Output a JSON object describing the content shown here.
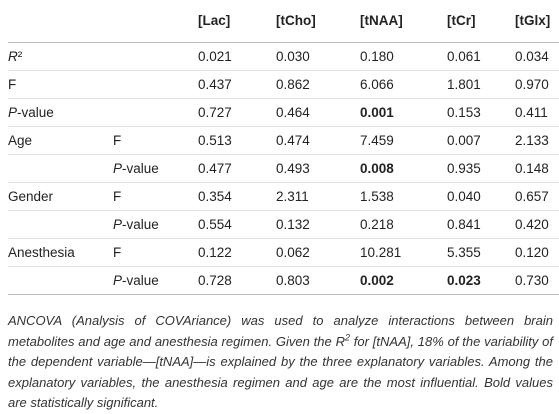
{
  "table": {
    "columns": [
      "[Lac]",
      "[tCho]",
      "[tNAA]",
      "[tCr]",
      "[tGlx]"
    ],
    "rows": [
      {
        "label": "R²",
        "italic_initial": true,
        "values": [
          "0.021",
          "0.030",
          "0.180",
          "0.061",
          "0.034"
        ]
      },
      {
        "label": "F",
        "values": [
          "0.437",
          "0.862",
          "6.066",
          "1.801",
          "0.970"
        ]
      },
      {
        "label": "P-value",
        "italic_initial": true,
        "values": [
          "0.727",
          "0.464",
          "0.001",
          "0.153",
          "0.411"
        ],
        "bold": [
          2
        ]
      },
      {
        "label": "Age",
        "sub": "F",
        "values": [
          "0.513",
          "0.474",
          "7.459",
          "0.007",
          "2.133"
        ]
      },
      {
        "sub": "P-value",
        "italic_initial": true,
        "values": [
          "0.477",
          "0.493",
          "0.008",
          "0.935",
          "0.148"
        ],
        "bold": [
          2
        ]
      },
      {
        "label": "Gender",
        "sub": "F",
        "values": [
          "0.354",
          "2.311",
          "1.538",
          "0.040",
          "0.657"
        ]
      },
      {
        "sub": "P-value",
        "italic_initial": true,
        "values": [
          "0.554",
          "0.132",
          "0.218",
          "0.841",
          "0.420"
        ]
      },
      {
        "label": "Anesthesia",
        "sub": "F",
        "values": [
          "0.122",
          "0.062",
          "10.281",
          "5.355",
          "0.120"
        ]
      },
      {
        "sub": "P-value",
        "italic_initial": true,
        "values": [
          "0.728",
          "0.803",
          "0.002",
          "0.023",
          "0.730"
        ],
        "bold": [
          2,
          3
        ]
      }
    ]
  },
  "note": [
    "ANCOVA (Analysis of COVAriance) was used to analyze interactions between brain metabolites and age and anesthesia regimen. Given the R",
    "2",
    " for [tNAA], 18% of the variability of the dependent variable—[tNAA]—is explained by the three explanatory variables. Among the explanatory variables, the anesthesia regimen and age are the most influential. Bold values are statistically significant."
  ]
}
